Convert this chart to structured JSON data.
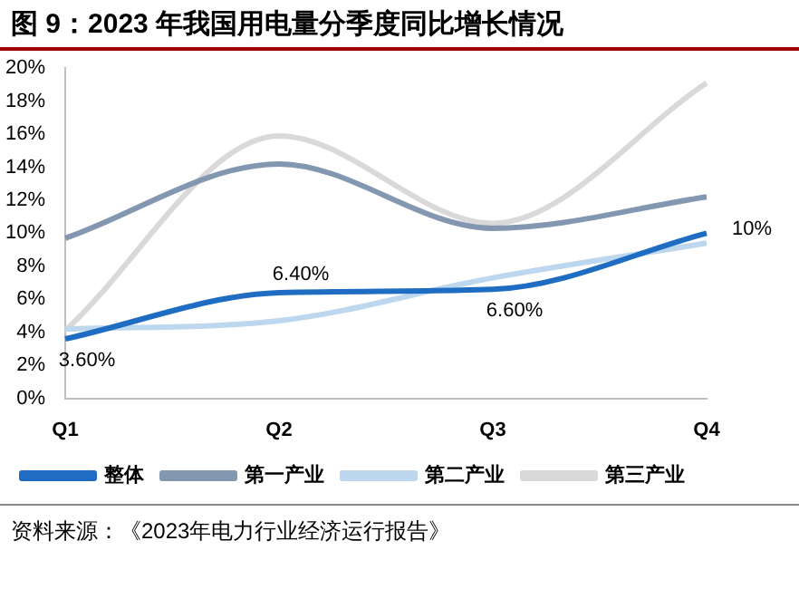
{
  "chart_data": {
    "type": "line",
    "title": "图 9：2023 年我国用电量分季度同比增长情况",
    "categories": [
      "Q1",
      "Q2",
      "Q3",
      "Q4"
    ],
    "series": [
      {
        "name": "整体",
        "color": "#1f6dc2",
        "values": [
          3.6,
          6.4,
          6.6,
          10
        ],
        "value_labels": [
          "3.60%",
          "6.40%",
          "6.60%",
          "10%"
        ]
      },
      {
        "name": "第一产业",
        "color": "#8497b0",
        "values": [
          9.7,
          14.2,
          10.3,
          12.2
        ]
      },
      {
        "name": "第二产业",
        "color": "#bdd7ee",
        "values": [
          4.2,
          4.7,
          7.3,
          9.4
        ]
      },
      {
        "name": "第三产业",
        "color": "#d9d9d9",
        "values": [
          4.1,
          15.9,
          10.6,
          19.1
        ]
      }
    ],
    "ylim": [
      0,
      20
    ],
    "yticks": [
      {
        "value": 0,
        "label": "0%"
      },
      {
        "value": 2,
        "label": "2%"
      },
      {
        "value": 4,
        "label": "4%"
      },
      {
        "value": 6,
        "label": "6%"
      },
      {
        "value": 8,
        "label": "8%"
      },
      {
        "value": 10,
        "label": "10%"
      },
      {
        "value": 12,
        "label": "12%"
      },
      {
        "value": 14,
        "label": "14%"
      },
      {
        "value": 16,
        "label": "16%"
      },
      {
        "value": 18,
        "label": "18%"
      },
      {
        "value": 20,
        "label": "20%"
      }
    ],
    "legend": "bottom",
    "marker": "none",
    "line_style": "solid",
    "annotations": [
      "资料来源：《2023年电力行业经济运行报告》"
    ]
  }
}
